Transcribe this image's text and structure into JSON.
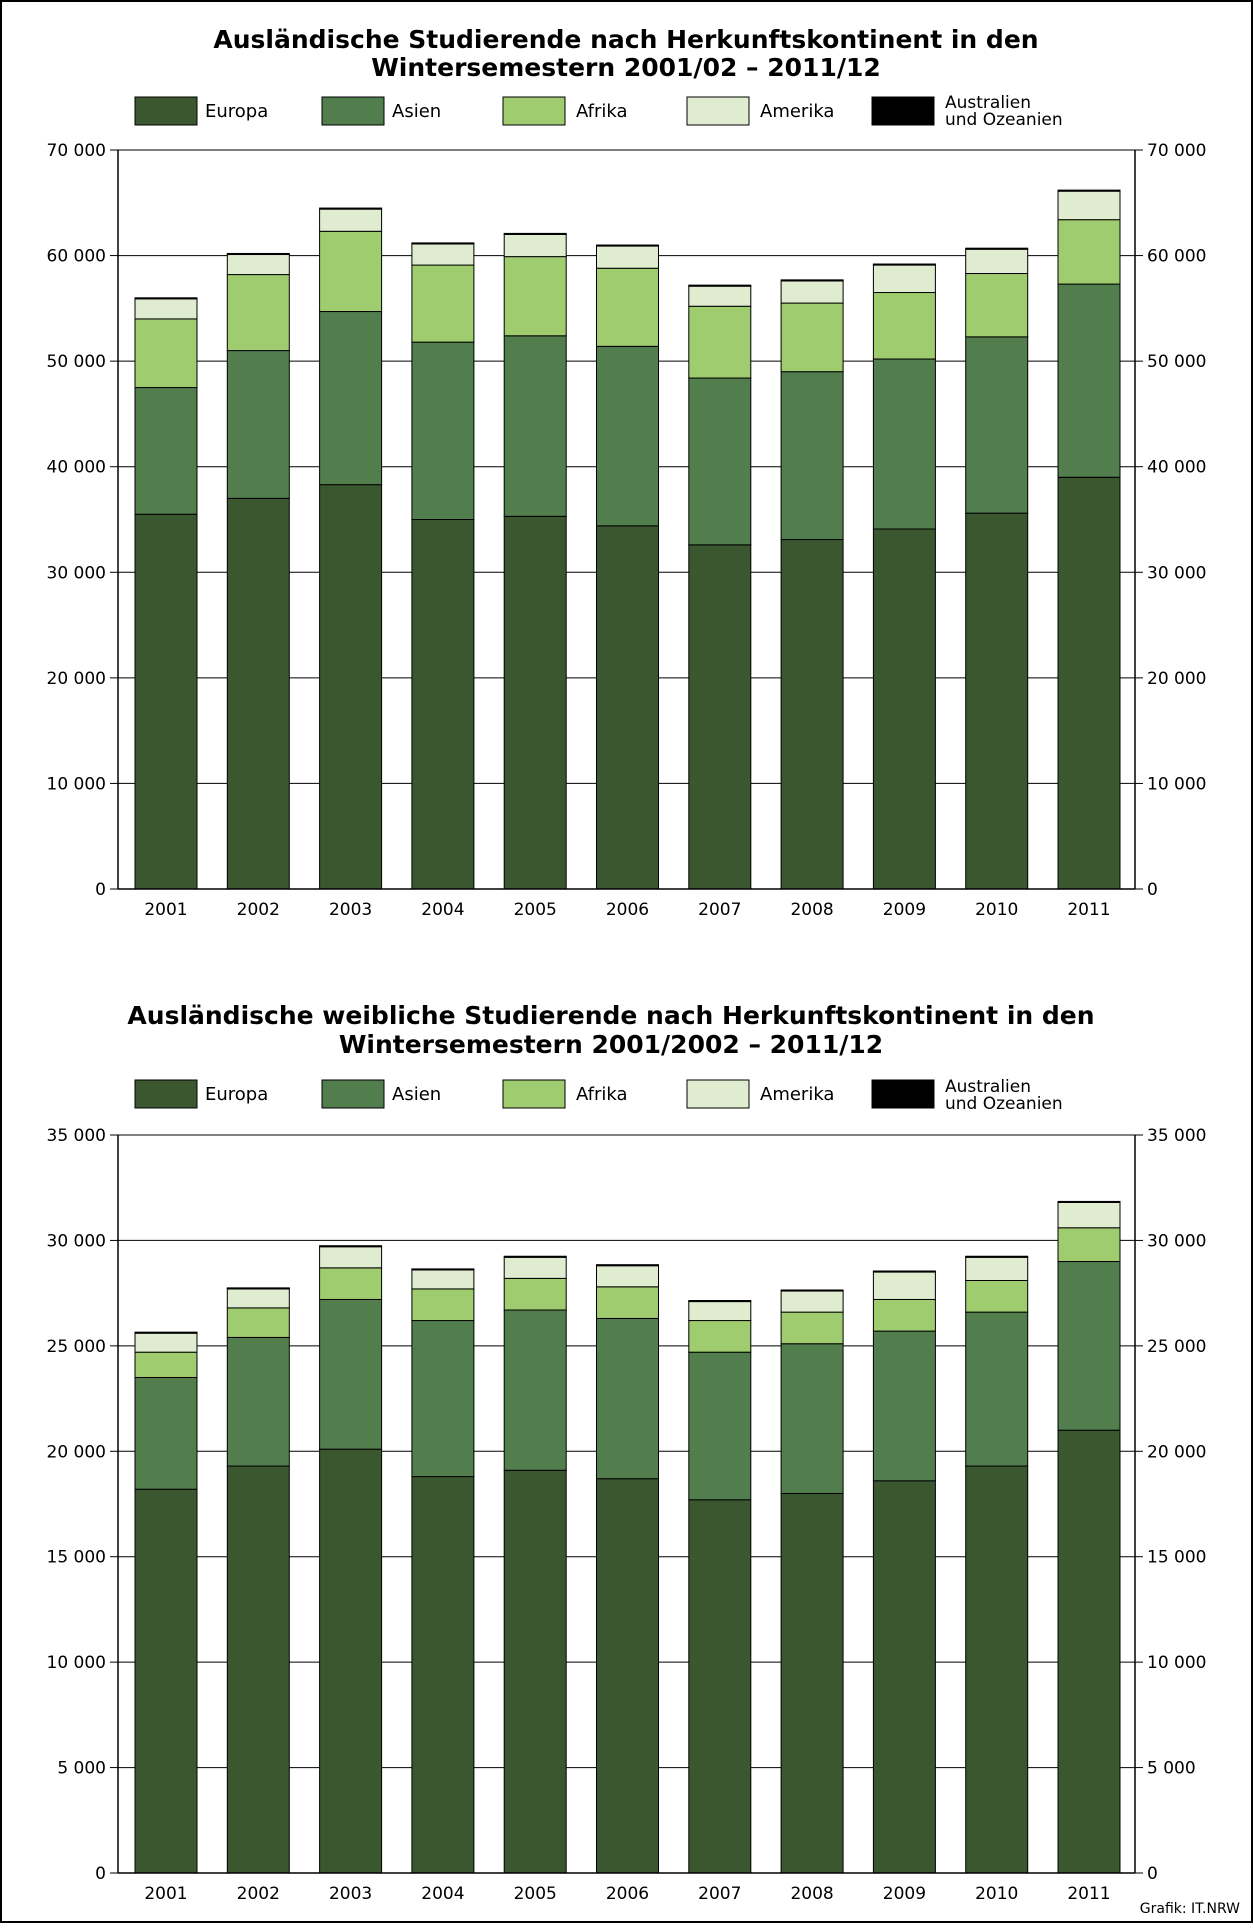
{
  "colors": {
    "Europa": "#3b572f",
    "Asien": "#527d4d",
    "Afrika": "#9fcc6f",
    "Amerika": "#dfeccf",
    "Australien und Ozeanien": "#000000",
    "grid": "#000000",
    "background": "#ffffff"
  },
  "credit": "Grafik: IT.NRW",
  "chart_data": [
    {
      "type": "bar",
      "stacked": true,
      "title_line1": "Ausländische Studierende nach Herkunftskontinent in den",
      "title_line2": "Wintersemestern 2001/02 – 2011/12",
      "legend": [
        "Europa",
        "Asien",
        "Afrika",
        "Amerika",
        "Australien",
        "und Ozeanien"
      ],
      "categories": [
        "2001",
        "2002",
        "2003",
        "2004",
        "2005",
        "2006",
        "2007",
        "2008",
        "2009",
        "2010",
        "2011"
      ],
      "ylim": [
        0,
        70000
      ],
      "yticks": [
        0,
        10000,
        20000,
        30000,
        40000,
        50000,
        60000,
        70000
      ],
      "ytick_labels": [
        "0",
        "10 000",
        "20 000",
        "30 000",
        "40 000",
        "50 000",
        "60 000",
        "70 000"
      ],
      "grid": true,
      "axis_labels_both_sides": true,
      "series": [
        {
          "name": "Europa",
          "values": [
            35500,
            37000,
            38300,
            35000,
            35300,
            34400,
            32600,
            33100,
            34100,
            35600,
            39000
          ]
        },
        {
          "name": "Asien",
          "values": [
            12000,
            14000,
            16400,
            16800,
            17100,
            17000,
            15800,
            15900,
            16100,
            16700,
            18300
          ]
        },
        {
          "name": "Afrika",
          "values": [
            6500,
            7200,
            7600,
            7300,
            7500,
            7400,
            6800,
            6500,
            6300,
            6000,
            6100
          ]
        },
        {
          "name": "Amerika",
          "values": [
            1900,
            1900,
            2100,
            2000,
            2100,
            2100,
            1900,
            2100,
            2600,
            2300,
            2700
          ]
        },
        {
          "name": "Australien und Ozeanien",
          "values": [
            100,
            100,
            100,
            100,
            100,
            100,
            100,
            100,
            100,
            100,
            100
          ]
        }
      ]
    },
    {
      "type": "bar",
      "stacked": true,
      "title_line1": "Ausländische weibliche Studierende nach Herkunftskontinent in den",
      "title_line2": "Wintersemestern 2001/2002 – 2011/12",
      "legend": [
        "Europa",
        "Asien",
        "Afrika",
        "Amerika",
        "Australien",
        "und Ozeanien"
      ],
      "categories": [
        "2001",
        "2002",
        "2003",
        "2004",
        "2005",
        "2006",
        "2007",
        "2008",
        "2009",
        "2010",
        "2011"
      ],
      "ylim": [
        0,
        35000
      ],
      "yticks": [
        0,
        5000,
        10000,
        15000,
        20000,
        25000,
        30000,
        35000
      ],
      "ytick_labels": [
        "0",
        "5 000",
        "10 000",
        "15 000",
        "20 000",
        "25 000",
        "30 000",
        "35 000"
      ],
      "grid": true,
      "axis_labels_both_sides": true,
      "series": [
        {
          "name": "Europa",
          "values": [
            18200,
            19300,
            20100,
            18800,
            19100,
            18700,
            17700,
            18000,
            18600,
            19300,
            21000
          ]
        },
        {
          "name": "Asien",
          "values": [
            5300,
            6100,
            7100,
            7400,
            7600,
            7600,
            7000,
            7100,
            7100,
            7300,
            8000
          ]
        },
        {
          "name": "Afrika",
          "values": [
            1200,
            1400,
            1500,
            1500,
            1500,
            1500,
            1500,
            1500,
            1500,
            1500,
            1600
          ]
        },
        {
          "name": "Amerika",
          "values": [
            900,
            900,
            1000,
            900,
            1000,
            1000,
            900,
            1000,
            1300,
            1100,
            1200
          ]
        },
        {
          "name": "Australien und Ozeanien",
          "values": [
            50,
            50,
            50,
            50,
            50,
            50,
            50,
            50,
            50,
            50,
            50
          ]
        }
      ]
    }
  ]
}
